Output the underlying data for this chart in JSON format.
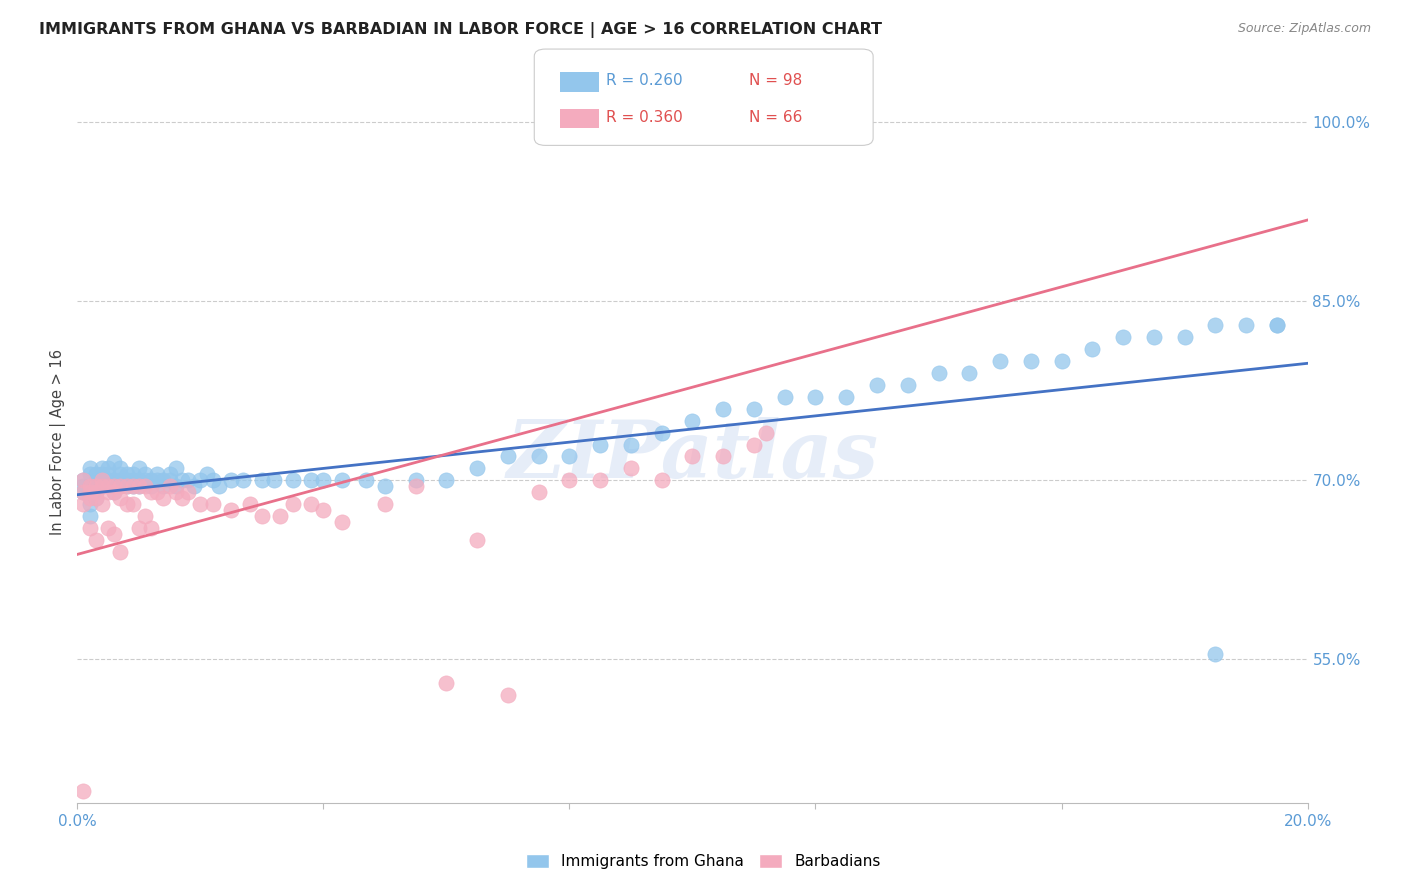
{
  "title": "IMMIGRANTS FROM GHANA VS BARBADIAN IN LABOR FORCE | AGE > 16 CORRELATION CHART",
  "source": "Source: ZipAtlas.com",
  "ylabel": "In Labor Force | Age > 16",
  "xlim": [
    0.0,
    0.2
  ],
  "ylim": [
    0.43,
    1.035
  ],
  "yticks_right": [
    0.55,
    0.7,
    0.85,
    1.0
  ],
  "ytick_labels_right": [
    "55.0%",
    "70.0%",
    "85.0%",
    "100.0%"
  ],
  "blue_color": "#93C6EC",
  "pink_color": "#F4ABBE",
  "blue_line_color": "#4472C4",
  "pink_line_color": "#E8708A",
  "blue_trend": [
    0.0,
    0.2,
    0.688,
    0.798
  ],
  "pink_trend": [
    0.0,
    0.2,
    0.638,
    0.918
  ],
  "watermark": "ZIPatlas",
  "blue_x": [
    0.001,
    0.001,
    0.001,
    0.002,
    0.002,
    0.002,
    0.002,
    0.002,
    0.003,
    0.003,
    0.003,
    0.003,
    0.003,
    0.004,
    0.004,
    0.004,
    0.004,
    0.005,
    0.005,
    0.005,
    0.005,
    0.006,
    0.006,
    0.006,
    0.006,
    0.007,
    0.007,
    0.007,
    0.007,
    0.008,
    0.008,
    0.008,
    0.009,
    0.009,
    0.009,
    0.01,
    0.01,
    0.01,
    0.011,
    0.011,
    0.012,
    0.012,
    0.013,
    0.013,
    0.014,
    0.014,
    0.015,
    0.015,
    0.016,
    0.016,
    0.017,
    0.018,
    0.019,
    0.02,
    0.021,
    0.022,
    0.023,
    0.025,
    0.027,
    0.03,
    0.032,
    0.035,
    0.038,
    0.04,
    0.043,
    0.047,
    0.05,
    0.055,
    0.06,
    0.065,
    0.07,
    0.075,
    0.08,
    0.085,
    0.09,
    0.095,
    0.1,
    0.105,
    0.11,
    0.115,
    0.12,
    0.125,
    0.13,
    0.135,
    0.14,
    0.145,
    0.15,
    0.155,
    0.16,
    0.165,
    0.17,
    0.175,
    0.18,
    0.185,
    0.185,
    0.19,
    0.195,
    0.195
  ],
  "blue_y": [
    0.7,
    0.695,
    0.69,
    0.705,
    0.71,
    0.695,
    0.68,
    0.67,
    0.705,
    0.7,
    0.695,
    0.69,
    0.685,
    0.71,
    0.705,
    0.7,
    0.695,
    0.7,
    0.695,
    0.705,
    0.71,
    0.7,
    0.695,
    0.69,
    0.715,
    0.7,
    0.695,
    0.705,
    0.71,
    0.7,
    0.695,
    0.705,
    0.7,
    0.695,
    0.705,
    0.7,
    0.71,
    0.695,
    0.7,
    0.705,
    0.695,
    0.7,
    0.7,
    0.705,
    0.695,
    0.7,
    0.7,
    0.705,
    0.695,
    0.71,
    0.7,
    0.7,
    0.695,
    0.7,
    0.705,
    0.7,
    0.695,
    0.7,
    0.7,
    0.7,
    0.7,
    0.7,
    0.7,
    0.7,
    0.7,
    0.7,
    0.695,
    0.7,
    0.7,
    0.71,
    0.72,
    0.72,
    0.72,
    0.73,
    0.73,
    0.74,
    0.75,
    0.76,
    0.76,
    0.77,
    0.77,
    0.77,
    0.78,
    0.78,
    0.79,
    0.79,
    0.8,
    0.8,
    0.8,
    0.81,
    0.82,
    0.82,
    0.82,
    0.83,
    0.555,
    0.83,
    0.83,
    0.83
  ],
  "pink_x": [
    0.001,
    0.001,
    0.001,
    0.001,
    0.002,
    0.002,
    0.002,
    0.002,
    0.003,
    0.003,
    0.003,
    0.003,
    0.004,
    0.004,
    0.004,
    0.005,
    0.005,
    0.005,
    0.006,
    0.006,
    0.006,
    0.007,
    0.007,
    0.007,
    0.008,
    0.008,
    0.009,
    0.009,
    0.01,
    0.01,
    0.011,
    0.011,
    0.012,
    0.012,
    0.013,
    0.014,
    0.015,
    0.016,
    0.017,
    0.018,
    0.02,
    0.022,
    0.025,
    0.028,
    0.03,
    0.033,
    0.035,
    0.038,
    0.04,
    0.043,
    0.05,
    0.055,
    0.06,
    0.065,
    0.07,
    0.075,
    0.08,
    0.085,
    0.09,
    0.095,
    0.1,
    0.105,
    0.11,
    0.112,
    0.113
  ],
  "pink_y": [
    0.7,
    0.69,
    0.68,
    0.44,
    0.695,
    0.69,
    0.685,
    0.66,
    0.695,
    0.69,
    0.685,
    0.65,
    0.7,
    0.695,
    0.68,
    0.695,
    0.69,
    0.66,
    0.695,
    0.69,
    0.655,
    0.695,
    0.685,
    0.64,
    0.695,
    0.68,
    0.695,
    0.68,
    0.695,
    0.66,
    0.695,
    0.67,
    0.69,
    0.66,
    0.69,
    0.685,
    0.695,
    0.69,
    0.685,
    0.69,
    0.68,
    0.68,
    0.675,
    0.68,
    0.67,
    0.67,
    0.68,
    0.68,
    0.675,
    0.665,
    0.68,
    0.695,
    0.53,
    0.65,
    0.52,
    0.69,
    0.7,
    0.7,
    0.71,
    0.7,
    0.72,
    0.72,
    0.73,
    0.74,
    1.0
  ]
}
